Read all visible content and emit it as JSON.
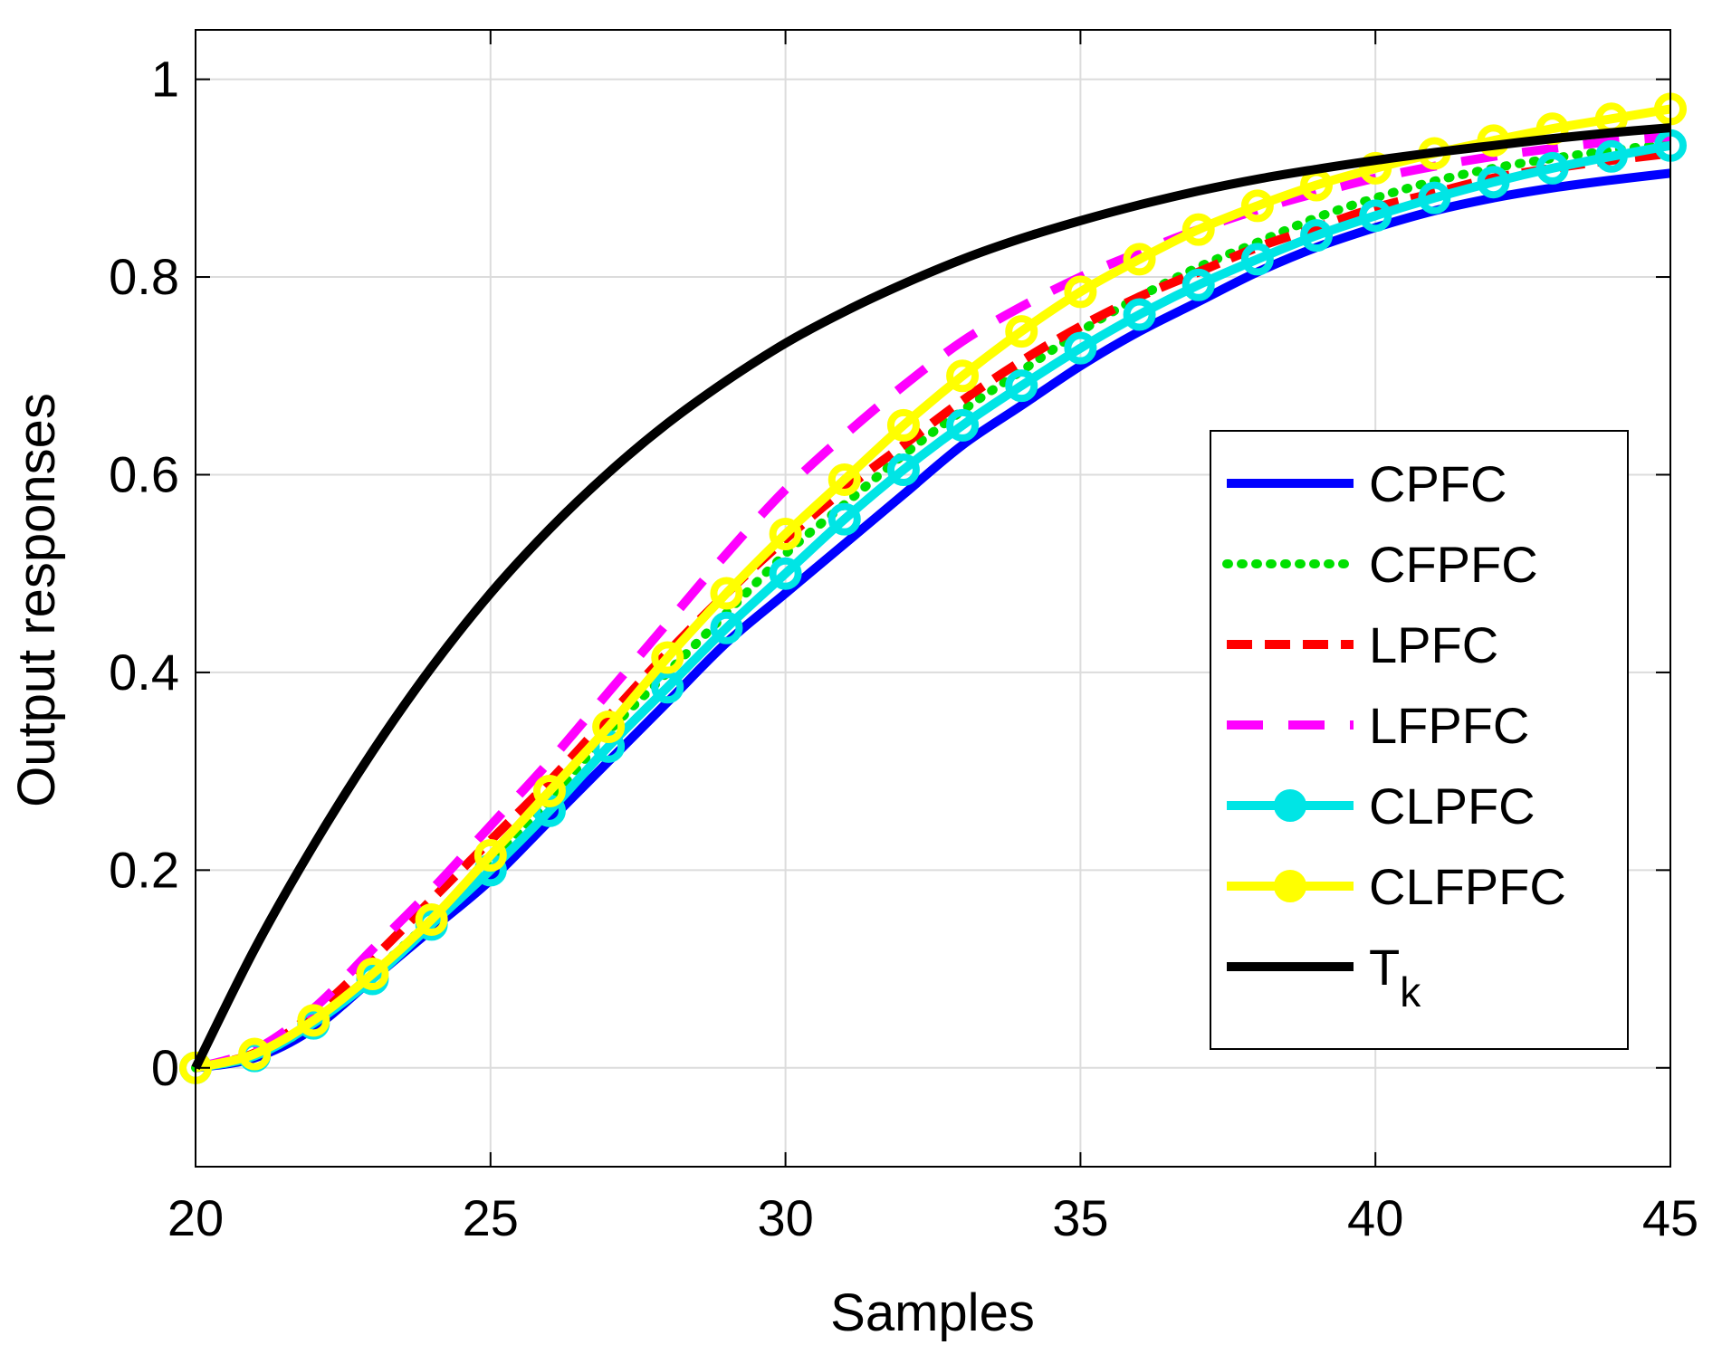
{
  "chart_data": {
    "type": "line",
    "xlabel": "Samples",
    "ylabel": "Output responses",
    "xlim": [
      20,
      45
    ],
    "ylim": [
      -0.1,
      1.05
    ],
    "xticks": [
      20,
      25,
      30,
      35,
      40,
      45
    ],
    "yticks": [
      0,
      0.2,
      0.4,
      0.6,
      0.8,
      1
    ],
    "xtick_labels": [
      "20",
      "25",
      "30",
      "35",
      "40",
      "45"
    ],
    "ytick_labels": [
      "0",
      "0.2",
      "0.4",
      "0.6",
      "0.8",
      "1"
    ],
    "grid": true,
    "legend_position": "right",
    "x": [
      20,
      21,
      22,
      23,
      24,
      25,
      26,
      27,
      28,
      29,
      30,
      31,
      32,
      33,
      34,
      35,
      36,
      37,
      38,
      39,
      40,
      41,
      42,
      43,
      44,
      45
    ],
    "series": [
      {
        "name": "CPFC",
        "label_main": "CPFC",
        "label_sub": "",
        "color": "#0000ff",
        "dash": "",
        "marker": "",
        "values": [
          0,
          0.01,
          0.04,
          0.09,
          0.14,
          0.19,
          0.25,
          0.31,
          0.37,
          0.43,
          0.48,
          0.53,
          0.58,
          0.63,
          0.67,
          0.71,
          0.745,
          0.775,
          0.805,
          0.83,
          0.85,
          0.867,
          0.88,
          0.89,
          0.898,
          0.905
        ]
      },
      {
        "name": "CFPFC",
        "label_main": "CFPFC",
        "label_sub": "",
        "color": "#00e000",
        "dash": "2,14",
        "marker": "",
        "values": [
          0,
          0.012,
          0.045,
          0.095,
          0.15,
          0.21,
          0.27,
          0.34,
          0.4,
          0.46,
          0.52,
          0.57,
          0.62,
          0.665,
          0.705,
          0.745,
          0.78,
          0.81,
          0.835,
          0.86,
          0.88,
          0.897,
          0.91,
          0.92,
          0.928,
          0.935
        ]
      },
      {
        "name": "LPFC",
        "label_main": "LPFC",
        "label_sub": "",
        "color": "#ff0000",
        "dash": "28,14",
        "marker": "",
        "values": [
          0,
          0.015,
          0.055,
          0.11,
          0.17,
          0.23,
          0.29,
          0.355,
          0.42,
          0.48,
          0.535,
          0.585,
          0.63,
          0.675,
          0.715,
          0.75,
          0.78,
          0.805,
          0.83,
          0.85,
          0.87,
          0.885,
          0.9,
          0.91,
          0.918,
          0.925
        ]
      },
      {
        "name": "LFPFC",
        "label_main": "LFPFC",
        "label_sub": "",
        "color": "#ff00ff",
        "dash": "40,28",
        "marker": "",
        "values": [
          0,
          0.018,
          0.06,
          0.12,
          0.18,
          0.245,
          0.31,
          0.38,
          0.45,
          0.52,
          0.585,
          0.64,
          0.69,
          0.735,
          0.77,
          0.8,
          0.825,
          0.848,
          0.868,
          0.885,
          0.9,
          0.912,
          0.922,
          0.93,
          0.937,
          0.942
        ]
      },
      {
        "name": "CLPFC",
        "label_main": "CLPFC",
        "label_sub": "",
        "color": "#00e5e5",
        "dash": "",
        "marker": "circle",
        "values": [
          0,
          0.012,
          0.045,
          0.09,
          0.145,
          0.2,
          0.26,
          0.325,
          0.385,
          0.445,
          0.5,
          0.555,
          0.605,
          0.65,
          0.69,
          0.728,
          0.762,
          0.792,
          0.818,
          0.842,
          0.862,
          0.88,
          0.896,
          0.91,
          0.922,
          0.933
        ]
      },
      {
        "name": "CLFPFC",
        "label_main": "CLFPFC",
        "label_sub": "",
        "color": "#ffff00",
        "dash": "",
        "marker": "circle",
        "values": [
          0,
          0.014,
          0.048,
          0.095,
          0.15,
          0.215,
          0.28,
          0.345,
          0.415,
          0.48,
          0.54,
          0.595,
          0.65,
          0.7,
          0.745,
          0.785,
          0.818,
          0.848,
          0.872,
          0.893,
          0.91,
          0.925,
          0.938,
          0.95,
          0.96,
          0.97
        ]
      },
      {
        "name": "Tk",
        "label_main": "T",
        "label_sub": "k",
        "color": "#000000",
        "dash": "",
        "marker": "",
        "values": [
          0,
          0.12,
          0.225,
          0.32,
          0.405,
          0.48,
          0.545,
          0.602,
          0.652,
          0.695,
          0.733,
          0.765,
          0.793,
          0.818,
          0.839,
          0.857,
          0.873,
          0.887,
          0.899,
          0.909,
          0.918,
          0.926,
          0.933,
          0.94,
          0.946,
          0.951
        ]
      }
    ]
  }
}
